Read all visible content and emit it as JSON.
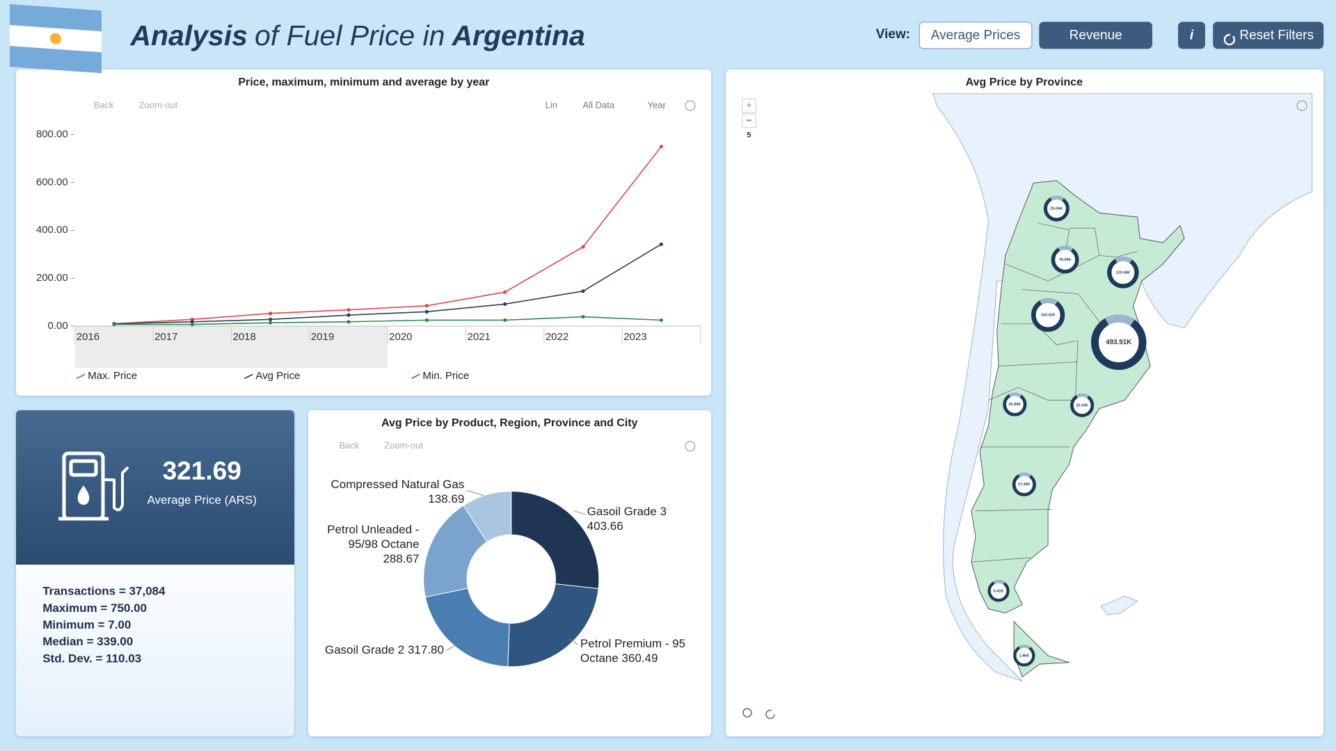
{
  "header": {
    "title_parts": [
      "Analysis",
      "of Fuel Price in",
      "Argentina"
    ],
    "view_label": "View:",
    "buttons": [
      "Average Prices",
      "Revenue",
      "i",
      "Reset Filters"
    ]
  },
  "chart_data": [
    {
      "type": "line",
      "title": "Price, maximum, minimum and average by year",
      "categories": [
        "2016",
        "2017",
        "2018",
        "2019",
        "2020",
        "2021",
        "2022",
        "2023"
      ],
      "series": [
        {
          "name": "Max. Price",
          "color": "#e0454a",
          "values": [
            10,
            28,
            53,
            68,
            85,
            142,
            331,
            750
          ]
        },
        {
          "name": "Avg Price",
          "color": "#2b3f5c",
          "values": [
            10,
            18,
            28,
            46,
            60,
            92,
            146,
            342
          ]
        },
        {
          "name": "Min. Price",
          "color": "#2a8a4a",
          "values": [
            7,
            7,
            14,
            18,
            25,
            25,
            39,
            25
          ]
        }
      ],
      "ylim": [
        0,
        800
      ],
      "yticks": [
        {
          "value": 0,
          "label": "0.00"
        },
        {
          "value": 200,
          "label": "200.00"
        },
        {
          "value": 400,
          "label": "400.00"
        },
        {
          "value": 600,
          "label": "600.00"
        },
        {
          "value": 800,
          "label": "800.00"
        }
      ],
      "legend": "bottom"
    },
    {
      "type": "donut",
      "title": "Avg Price by Product, Region, Province and City",
      "categories": [
        "Gasoil Grade 3",
        "Petrol Premium - 95 Octane",
        "Gasoil Grade 2",
        "Petrol Unleaded - 95/98 Octane",
        "Compressed Natural Gas"
      ],
      "values": [
        403.66,
        360.49,
        317.8,
        288.67,
        138.69
      ],
      "value_labels": [
        "403.66",
        "360.49",
        "317.80",
        "288.67",
        "138.69"
      ],
      "colors": [
        "#1e3653",
        "#2f5680",
        "#4a7db0",
        "#7aa3cd",
        "#a9c5df"
      ]
    }
  ],
  "toolbars": {
    "line": [
      "Back",
      "Zoom-out",
      "Lin",
      "All Data",
      "Year"
    ],
    "donut": [
      "Back",
      "Zoom-out"
    ]
  },
  "kpi": {
    "value": 321.69,
    "label": "Average Price (ARS)",
    "stats": [
      "Transactions = 37,084",
      "Maximum = 750.00",
      "Minimum = 7.00",
      "Median = 339.00",
      "Std. Dev. = 110.03"
    ]
  },
  "map": {
    "title": "Avg Price by Province",
    "zoom_in": "+",
    "zoom_out": "−",
    "zoom_level": "5",
    "markers": [
      "25.06K",
      "78.49K",
      "120.44K",
      "160.42K",
      "493.91K",
      "26.89K",
      "32.03K",
      "17.49K",
      "6.41K",
      "1.96K"
    ]
  }
}
